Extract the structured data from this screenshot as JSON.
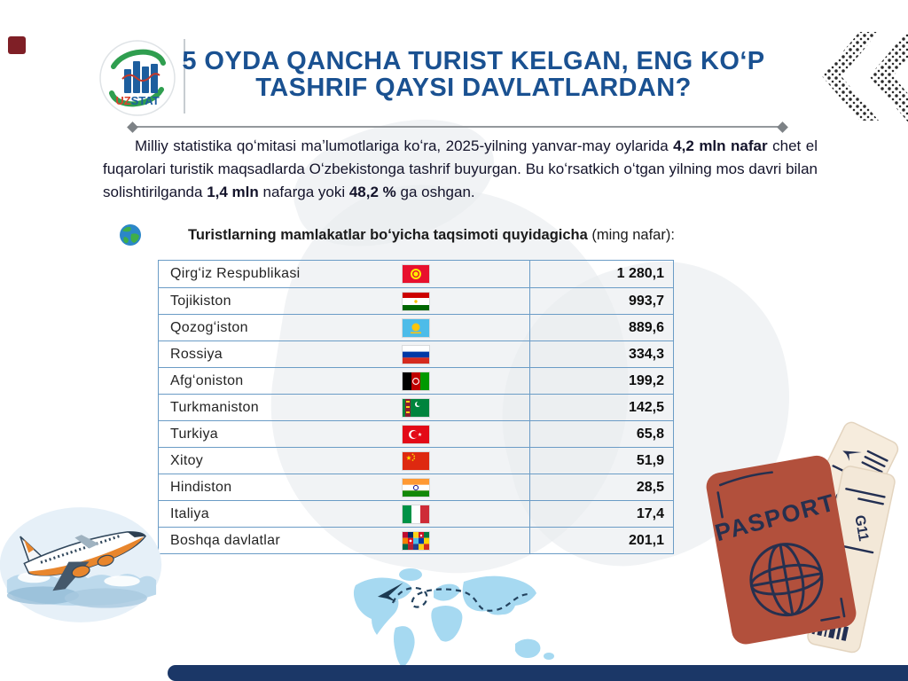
{
  "header": {
    "logo": {
      "uz": "UZ",
      "stat": "STAT"
    },
    "title_line1": "5 OYDA QANCHA TURIST KELGAN, ENG KOʻP",
    "title_line2": "TASHRIF QAYSI DAVLATLARDAN?"
  },
  "intro": {
    "segments": [
      {
        "text": "Milliy statistika qoʻmitasi maʼlumotlariga koʻra, 2025-yilning yanvar-may oylarida ",
        "bold": false
      },
      {
        "text": "4,2 mln nafar",
        "bold": true
      },
      {
        "text": " chet el fuqarolari turistik maqsadlarda Oʻzbekistonga tashrif buyurgan. Bu koʻrsatkich oʻtgan yilning mos davri bilan solishtirilganda ",
        "bold": false
      },
      {
        "text": "1,4 mln",
        "bold": true
      },
      {
        "text": " nafarga yoki ",
        "bold": false
      },
      {
        "text": "48,2 %",
        "bold": true
      },
      {
        "text": " ga oshgan.",
        "bold": false
      }
    ]
  },
  "subtitle": {
    "bold": "Turistlarning mamlakatlar boʻyicha taqsimoti quyidagicha",
    "normal": " (ming nafar):"
  },
  "table": {
    "rows": [
      {
        "country": "Qirgʻiz Respublikasi",
        "flag": "kg",
        "value": "1 280,1"
      },
      {
        "country": "Tojikiston",
        "flag": "tj",
        "value": "993,7"
      },
      {
        "country": "Qozogʻiston",
        "flag": "kz",
        "value": "889,6"
      },
      {
        "country": "Rossiya",
        "flag": "ru",
        "value": "334,3"
      },
      {
        "country": "Afgʻoniston",
        "flag": "af",
        "value": "199,2"
      },
      {
        "country": "Turkmaniston",
        "flag": "tm",
        "value": "142,5"
      },
      {
        "country": "Turkiya",
        "flag": "tr",
        "value": "65,8"
      },
      {
        "country": "Xitoy",
        "flag": "cn",
        "value": "51,9"
      },
      {
        "country": "Hindiston",
        "flag": "in",
        "value": "28,5"
      },
      {
        "country": "Italiya",
        "flag": "it",
        "value": "17,4"
      },
      {
        "country": "Boshqa davlatlar",
        "flag": "multi",
        "value": "201,1"
      }
    ]
  },
  "chart_data": {
    "type": "table",
    "title": "Turistlarning mamlakatlar boʻyicha taqsimoti quyidagicha (ming nafar)",
    "categories": [
      "Qirgʻiz Respublikasi",
      "Tojikiston",
      "Qozogʻiston",
      "Rossiya",
      "Afgʻoniston",
      "Turkmaniston",
      "Turkiya",
      "Xitoy",
      "Hindiston",
      "Italiya",
      "Boshqa davlatlar"
    ],
    "values": [
      1280.1,
      993.7,
      889.6,
      334.3,
      199.2,
      142.5,
      65.8,
      51.9,
      28.5,
      17.4,
      201.1
    ],
    "unit": "ming nafar"
  },
  "decorations": {
    "passport_label": "PASPORT",
    "ticket_label": "G11"
  },
  "colors": {
    "accent_blue": "#1a5191",
    "table_border": "#6b9cc6",
    "footer_bar": "#1b3767",
    "corner_square": "#7f1f26"
  }
}
